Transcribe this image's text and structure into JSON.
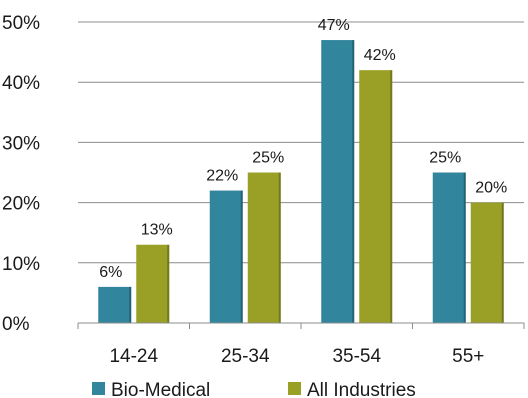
{
  "chart_data": {
    "type": "bar",
    "categories": [
      "14-24",
      "25-34",
      "35-54",
      "55+"
    ],
    "series": [
      {
        "name": "Bio-Medical",
        "values": [
          6,
          22,
          47,
          25
        ],
        "labels": [
          "6%",
          "22%",
          "47%",
          "25%"
        ],
        "color": "#31859c"
      },
      {
        "name": "All Industries",
        "values": [
          13,
          25,
          42,
          20
        ],
        "labels": [
          "13%",
          "25%",
          "42%",
          "20%"
        ],
        "color": "#9aa025"
      }
    ],
    "y_ticks": [
      0,
      10,
      20,
      30,
      40,
      50
    ],
    "y_tick_labels": [
      "0%",
      "10%",
      "20%",
      "30%",
      "40%",
      "50%"
    ],
    "ylim": [
      0,
      50
    ],
    "grid": true,
    "legend_position": "bottom"
  }
}
